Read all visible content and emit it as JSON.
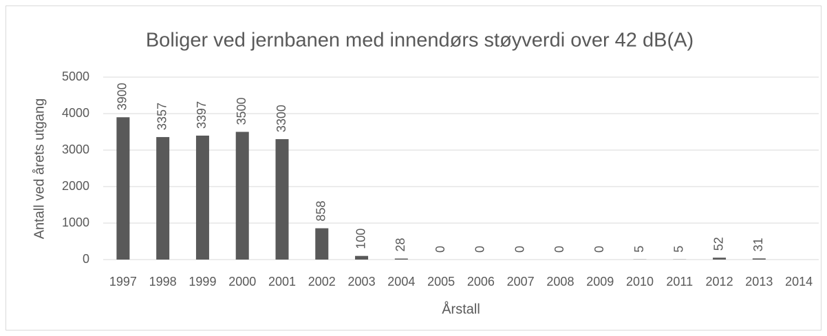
{
  "chart_data": {
    "type": "bar",
    "title": "Boliger ved jernbanen med innendørs støyverdi over 42 dB(A)",
    "x_label": "Årstall",
    "y_label": "Antall ved årets utgang",
    "categories": [
      "1997",
      "1998",
      "1999",
      "2000",
      "2001",
      "2002",
      "2003",
      "2004",
      "2005",
      "2006",
      "2007",
      "2008",
      "2009",
      "2010",
      "2011",
      "2012",
      "2013",
      "2014"
    ],
    "values": [
      3900,
      3357,
      3397,
      3500,
      3300,
      858,
      100,
      28,
      0,
      0,
      0,
      0,
      0,
      5,
      5,
      52,
      31,
      null
    ],
    "color": "#595959",
    "ylim": [
      0,
      5000
    ],
    "yticks": [
      0,
      1000,
      2000,
      3000,
      4000,
      5000
    ],
    "grid": true
  }
}
